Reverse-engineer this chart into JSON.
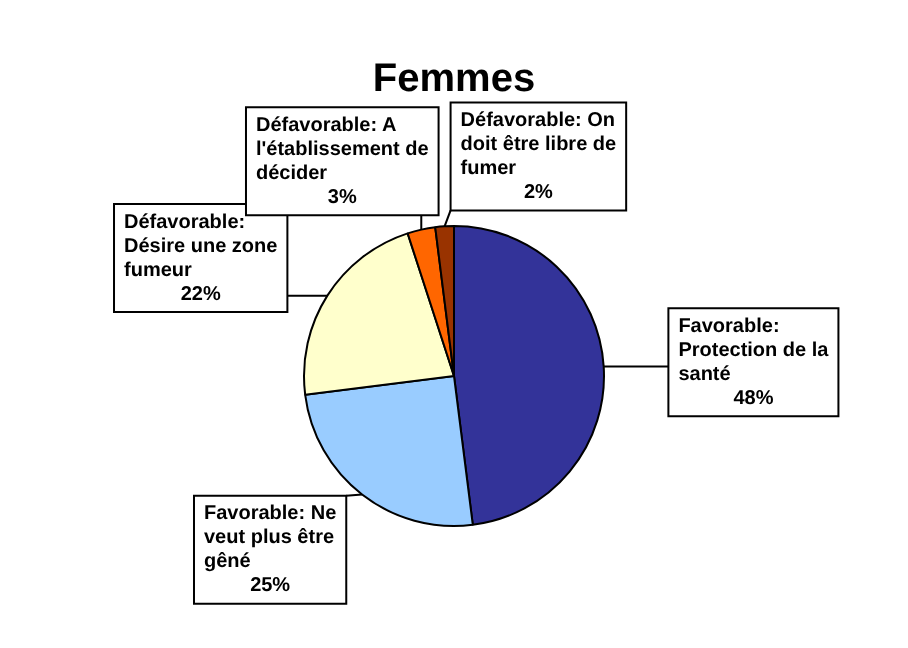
{
  "chart_data": {
    "type": "pie",
    "title": "Femmes",
    "categories": [
      "Favorable: Protection de la santé",
      "Favorable: Ne veut plus être gêné",
      "Défavorable: Désire une zone fumeur",
      "Défavorable: A l'établissement de décider",
      "Défavorable: On doit être libre de fumer"
    ],
    "values": [
      48,
      25,
      22,
      3,
      2
    ],
    "colors": [
      "#333399",
      "#99ccff",
      "#ffffcc",
      "#ff6600",
      "#993300"
    ],
    "value_labels": [
      "48%",
      "25%",
      "22%",
      "3%",
      "2%"
    ],
    "legend": false
  }
}
